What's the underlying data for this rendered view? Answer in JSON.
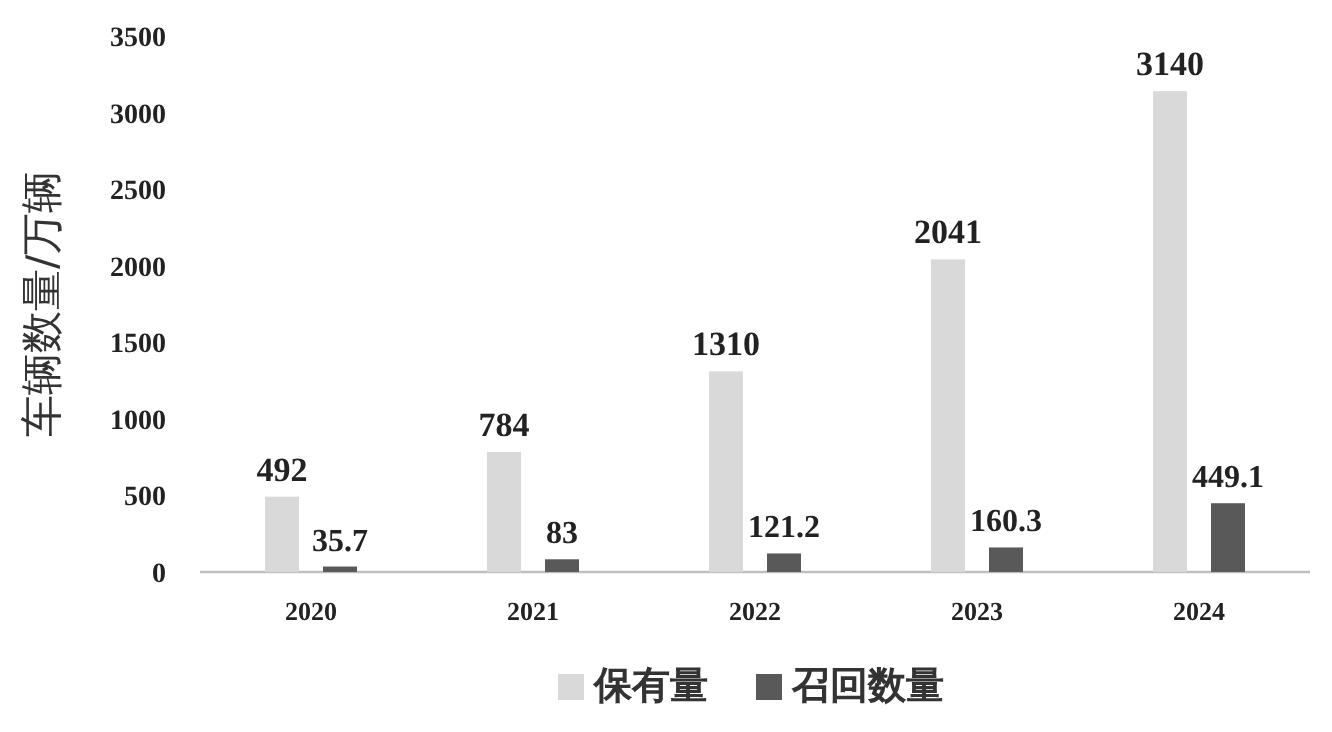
{
  "chart_data": {
    "type": "bar",
    "ylabel": "车辆数量/万辆",
    "categories": [
      "2020",
      "2021",
      "2022",
      "2023",
      "2024"
    ],
    "series": [
      {
        "name": "保有量",
        "color": "#d9d9d9",
        "values": [
          492,
          784,
          1310,
          2041,
          3140
        ]
      },
      {
        "name": "召回数量",
        "color": "#595959",
        "values": [
          35.7,
          83,
          121.2,
          160.3,
          449.1
        ]
      }
    ],
    "ylim": [
      0,
      3500
    ],
    "yticks": [
      0,
      500,
      1000,
      1500,
      2000,
      2500,
      3000,
      3500
    ],
    "data_labels": true,
    "legend": "bottom"
  }
}
